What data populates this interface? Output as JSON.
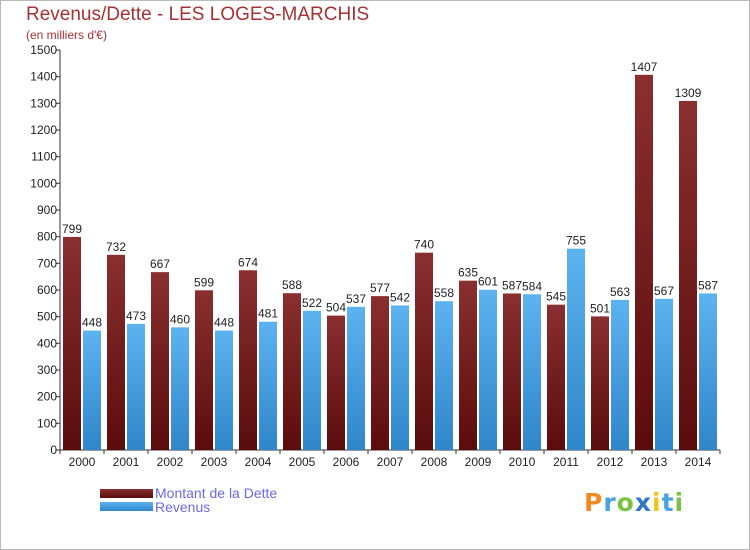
{
  "colors": {
    "dette": "#7f2929",
    "revenus": "#4fa9ea",
    "title": "#a63232",
    "legend_text": "#6a6ae6"
  },
  "chart_data": {
    "type": "bar",
    "title": "Revenus/Dette - LES LOGES-MARCHIS",
    "subtitle": "(en milliers d'€)",
    "xlabel": "",
    "ylabel": "",
    "ylim": [
      0,
      1500
    ],
    "yticks": [
      0,
      100,
      200,
      300,
      400,
      500,
      600,
      700,
      800,
      900,
      1000,
      1100,
      1200,
      1300,
      1400,
      1500
    ],
    "grid": false,
    "legend_position": "bottom-left",
    "categories": [
      "2000",
      "2001",
      "2002",
      "2003",
      "2004",
      "2005",
      "2006",
      "2007",
      "2008",
      "2009",
      "2010",
      "2011",
      "2012",
      "2013",
      "2014"
    ],
    "series": [
      {
        "name": "Montant de la Dette",
        "color": "#7f2929",
        "values": [
          799,
          732,
          667,
          599,
          674,
          588,
          504,
          577,
          740,
          635,
          587,
          545,
          501,
          1407,
          1309
        ]
      },
      {
        "name": "Revenus",
        "color": "#4fa9ea",
        "values": [
          448,
          473,
          460,
          448,
          481,
          522,
          537,
          542,
          558,
          601,
          584,
          755,
          563,
          567,
          587
        ]
      }
    ]
  },
  "logo": {
    "letters": [
      {
        "char": "P",
        "color": "#f08a24"
      },
      {
        "char": "r",
        "color": "#4aa3df"
      },
      {
        "char": "o",
        "color": "#7bc142"
      },
      {
        "char": "x",
        "color": "#2f78c4"
      },
      {
        "char": "i",
        "color": "#f0c419"
      },
      {
        "char": "t",
        "color": "#4aa3df"
      },
      {
        "char": "i",
        "color": "#7bc142"
      }
    ]
  }
}
